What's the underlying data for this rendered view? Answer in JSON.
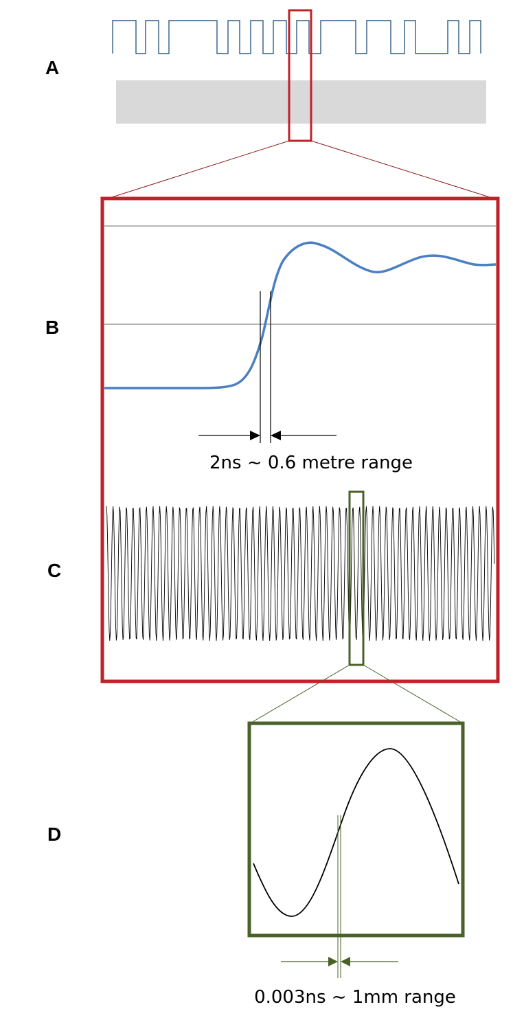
{
  "panels": {
    "a": "A",
    "b": "B",
    "c": "C",
    "d": "D"
  },
  "captions": {
    "b": "2ns ~ 0.6 metre range",
    "d": "0.003ns ~ 1mm range"
  },
  "colors": {
    "square_wave": "#2e5c87",
    "step_response": "#4a7fc1",
    "zoom_b_frame": "#c0222a",
    "zoom_d_frame": "#4a6128",
    "shaded_band": "#d9d9d9",
    "reference_lines": "#8a8a8a",
    "carrier": "#000000"
  },
  "icons": {
    "measure_arrows": "inward-arrowheads"
  }
}
